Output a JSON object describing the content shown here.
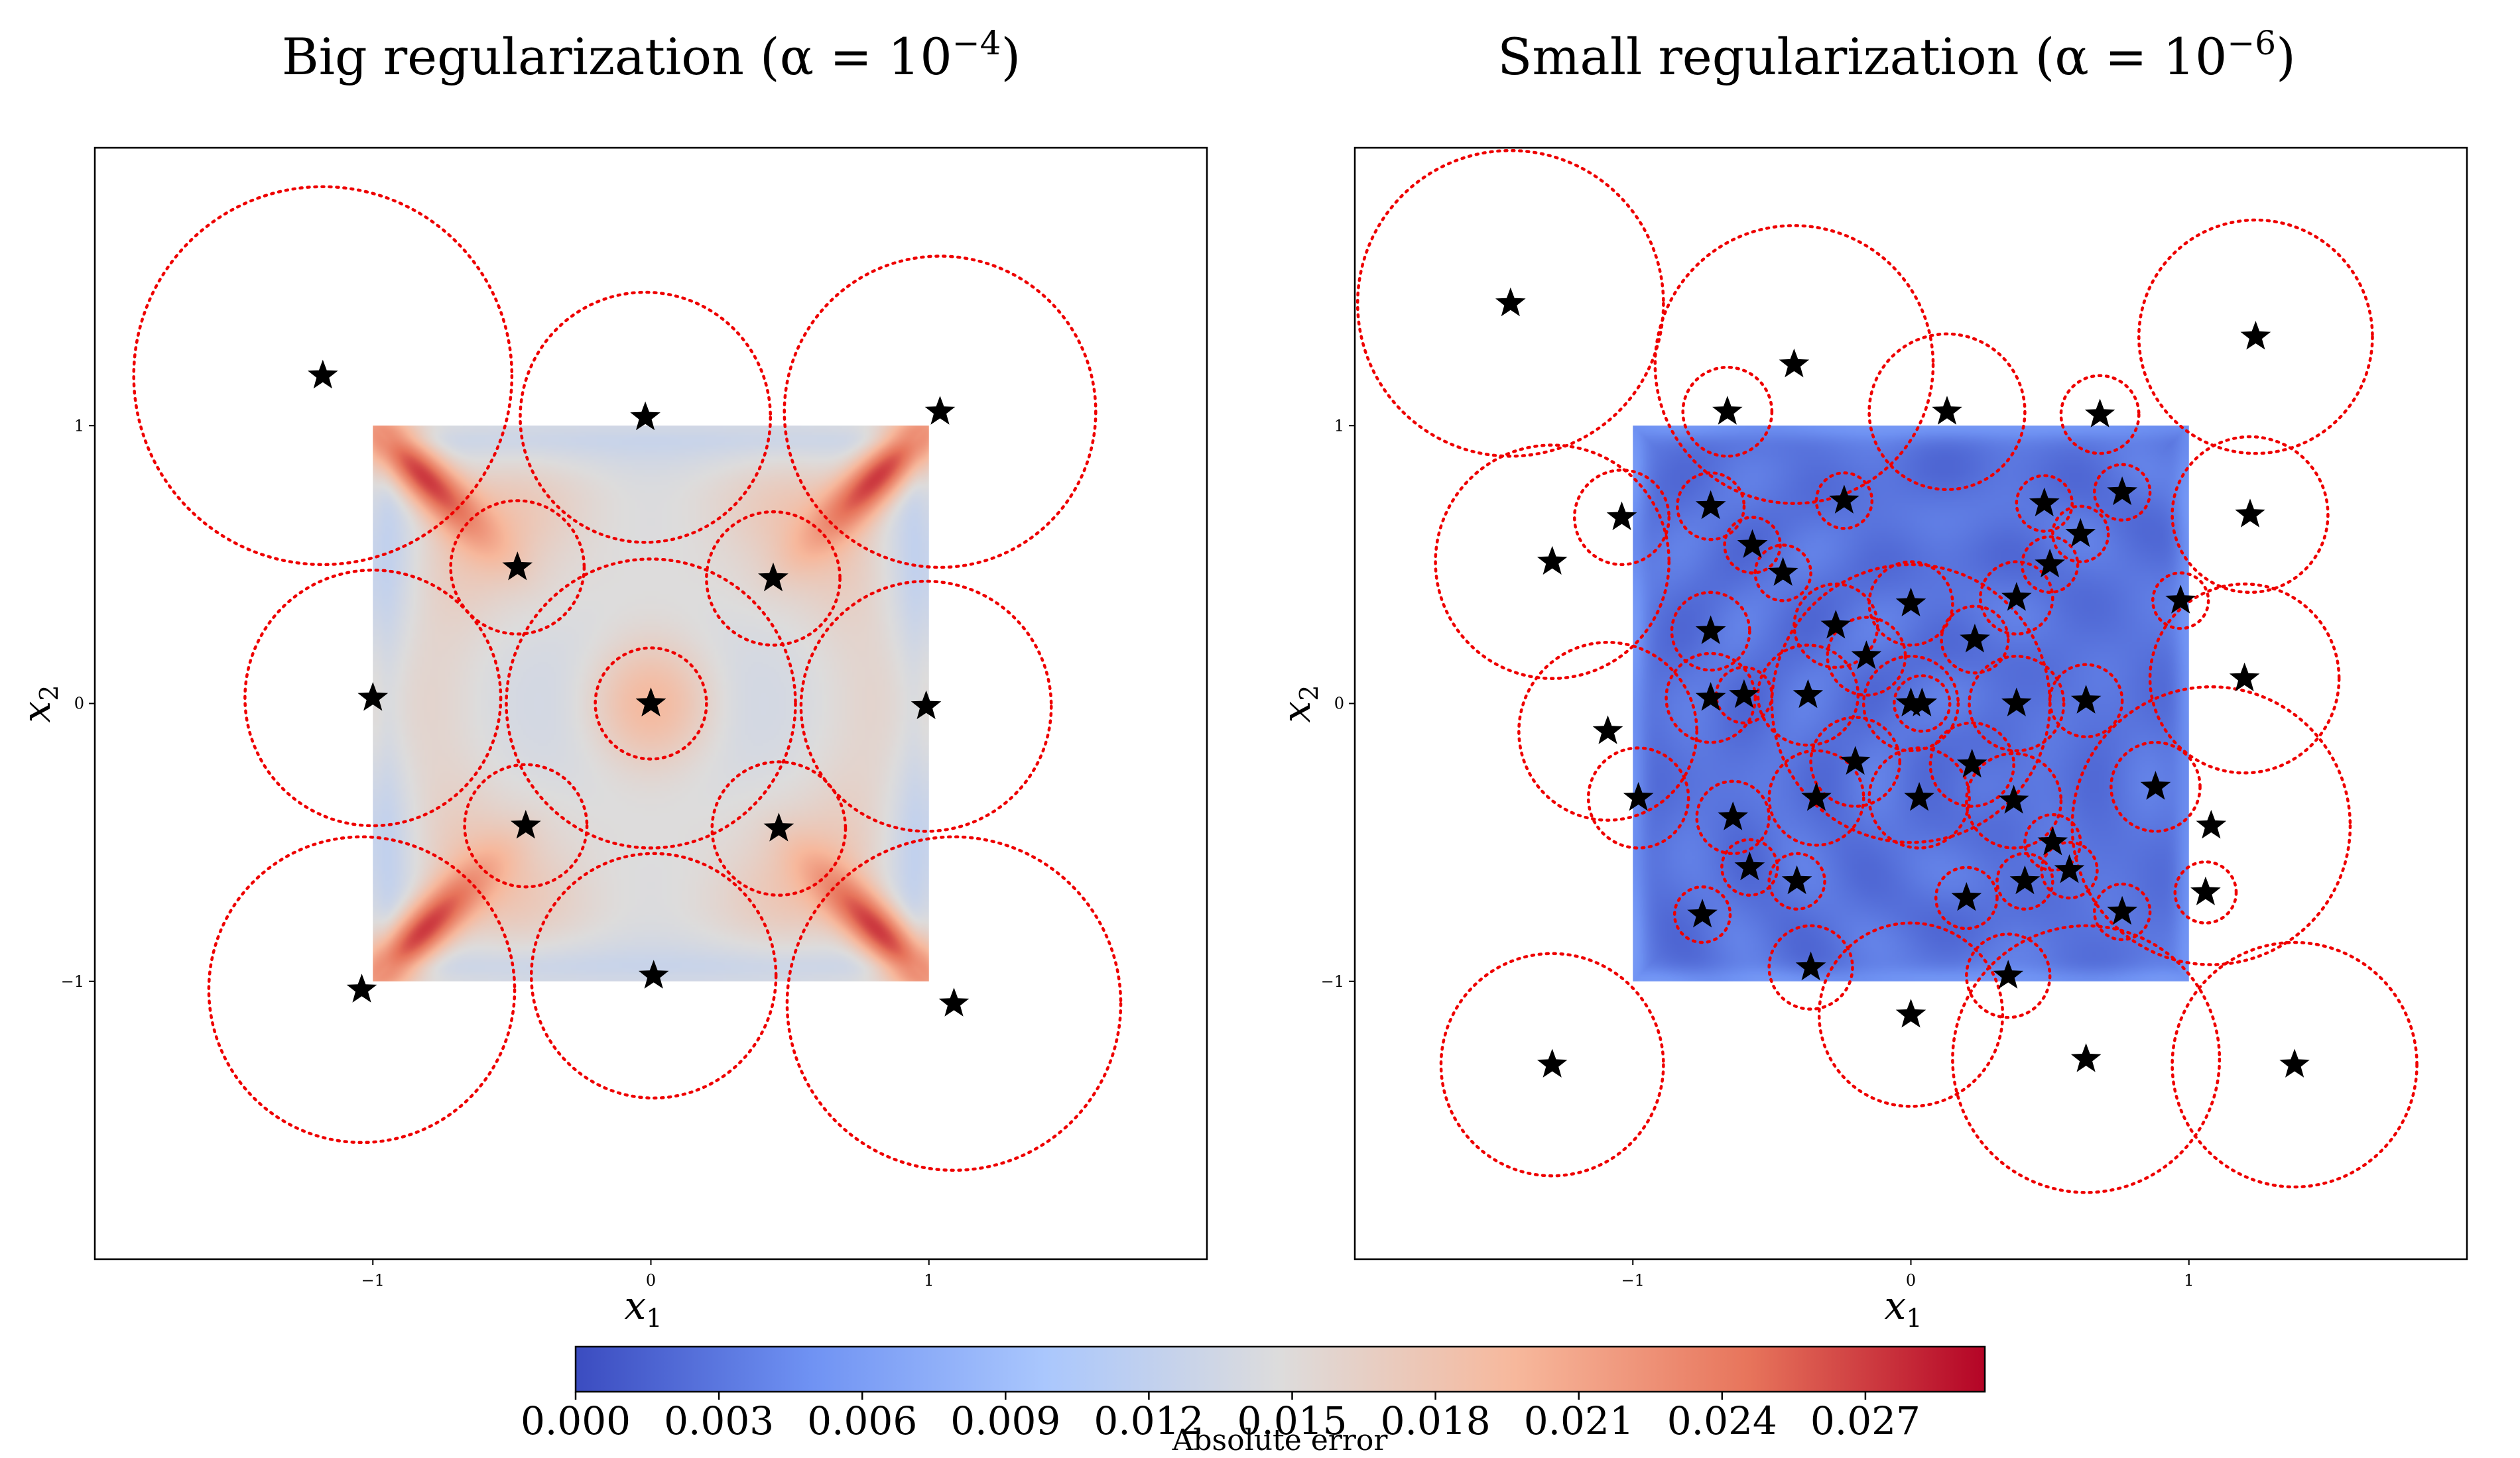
{
  "figure": {
    "colorbar": {
      "label": "Absolute error",
      "ticks": [
        "0.000",
        "0.003",
        "0.006",
        "0.009",
        "0.012",
        "0.015",
        "0.018",
        "0.021",
        "0.024",
        "0.027"
      ],
      "range": [
        0,
        0.0295
      ],
      "colormap": "coolwarm",
      "stops": [
        "#3b4cc0",
        "#6f92f3",
        "#aac7fd",
        "#dddcdc",
        "#f7b89c",
        "#e7745b",
        "#b40426"
      ]
    }
  },
  "chart_data": [
    {
      "type": "scatter",
      "title": "Big regularization (α = 10",
      "title_exponent": "−4",
      "title_close": ")",
      "xlabel": "x",
      "xlabel_sub": "1",
      "ylabel": "x",
      "ylabel_sub": "2",
      "xlim": [
        -2,
        2
      ],
      "ylim": [
        -2,
        2
      ],
      "xticks": [
        -1,
        0,
        1
      ],
      "yticks": [
        -1,
        0,
        1
      ],
      "xtick_labels": [
        "−1",
        "0",
        "1"
      ],
      "ytick_labels": [
        "−1",
        "0",
        "1"
      ],
      "domain": [
        -1,
        1
      ],
      "error_field": "big",
      "marker_color": "#000000",
      "circle_color": "#ee0000",
      "centers": [
        {
          "x": -1.18,
          "y": 1.18,
          "r": 0.68
        },
        {
          "x": -0.02,
          "y": 1.03,
          "r": 0.45
        },
        {
          "x": 1.04,
          "y": 1.05,
          "r": 0.56
        },
        {
          "x": -0.48,
          "y": 0.49,
          "r": 0.24
        },
        {
          "x": 0.44,
          "y": 0.45,
          "r": 0.24
        },
        {
          "x": -1.0,
          "y": 0.02,
          "r": 0.46
        },
        {
          "x": 0.0,
          "y": 0.0,
          "r": 0.2
        },
        {
          "x": 0.0,
          "y": 0.0,
          "r": 0.52
        },
        {
          "x": 0.99,
          "y": -0.01,
          "r": 0.45
        },
        {
          "x": -0.45,
          "y": -0.44,
          "r": 0.22
        },
        {
          "x": 0.46,
          "y": -0.45,
          "r": 0.24
        },
        {
          "x": -1.04,
          "y": -1.03,
          "r": 0.55
        },
        {
          "x": 0.01,
          "y": -0.98,
          "r": 0.44
        },
        {
          "x": 1.09,
          "y": -1.08,
          "r": 0.6
        }
      ]
    },
    {
      "type": "scatter",
      "title": "Small regularization (α = 10",
      "title_exponent": "−6",
      "title_close": ")",
      "xlabel": "x",
      "xlabel_sub": "1",
      "ylabel": "x",
      "ylabel_sub": "2",
      "xlim": [
        -2,
        2
      ],
      "ylim": [
        -2,
        2
      ],
      "xticks": [
        -1,
        0,
        1
      ],
      "yticks": [
        -1,
        0,
        1
      ],
      "xtick_labels": [
        "−1",
        "0",
        "1"
      ],
      "ytick_labels": [
        "−1",
        "0",
        "1"
      ],
      "domain": [
        -1,
        1
      ],
      "error_field": "small",
      "marker_color": "#000000",
      "circle_color": "#ee0000",
      "centers": [
        {
          "x": -1.44,
          "y": 1.44,
          "r": 0.55
        },
        {
          "x": -0.42,
          "y": 1.22,
          "r": 0.5
        },
        {
          "x": 1.24,
          "y": 1.32,
          "r": 0.42
        },
        {
          "x": -0.66,
          "y": 1.05,
          "r": 0.16
        },
        {
          "x": 0.13,
          "y": 1.05,
          "r": 0.28
        },
        {
          "x": 0.68,
          "y": 1.04,
          "r": 0.14
        },
        {
          "x": -1.04,
          "y": 0.67,
          "r": 0.17
        },
        {
          "x": -1.29,
          "y": 0.51,
          "r": 0.42
        },
        {
          "x": 1.22,
          "y": 0.68,
          "r": 0.28
        },
        {
          "x": -0.72,
          "y": 0.71,
          "r": 0.12
        },
        {
          "x": -0.24,
          "y": 0.73,
          "r": 0.1
        },
        {
          "x": 0.48,
          "y": 0.72,
          "r": 0.1
        },
        {
          "x": 0.76,
          "y": 0.76,
          "r": 0.1
        },
        {
          "x": -0.57,
          "y": 0.57,
          "r": 0.1
        },
        {
          "x": 0.61,
          "y": 0.61,
          "r": 0.1
        },
        {
          "x": -0.46,
          "y": 0.47,
          "r": 0.1
        },
        {
          "x": 0.5,
          "y": 0.5,
          "r": 0.1
        },
        {
          "x": 0.0,
          "y": 0.36,
          "r": 0.15
        },
        {
          "x": 0.38,
          "y": 0.38,
          "r": 0.13
        },
        {
          "x": 0.97,
          "y": 0.37,
          "r": 0.1
        },
        {
          "x": -0.72,
          "y": 0.26,
          "r": 0.14
        },
        {
          "x": -0.27,
          "y": 0.28,
          "r": 0.15
        },
        {
          "x": 0.23,
          "y": 0.23,
          "r": 0.12
        },
        {
          "x": -0.16,
          "y": 0.17,
          "r": 0.14
        },
        {
          "x": 1.2,
          "y": 0.09,
          "r": 0.34
        },
        {
          "x": -0.72,
          "y": 0.02,
          "r": 0.16
        },
        {
          "x": -0.6,
          "y": 0.03,
          "r": 0.1
        },
        {
          "x": -0.37,
          "y": 0.03,
          "r": 0.18
        },
        {
          "x": 0.0,
          "y": 0.0,
          "r": 0.17
        },
        {
          "x": 0.04,
          "y": 0.0,
          "r": 0.1
        },
        {
          "x": 0.38,
          "y": 0.0,
          "r": 0.17
        },
        {
          "x": 0.63,
          "y": 0.01,
          "r": 0.13
        },
        {
          "x": 0.0,
          "y": 0.0,
          "r": 0.5
        },
        {
          "x": -1.09,
          "y": -0.1,
          "r": 0.32
        },
        {
          "x": -0.2,
          "y": -0.21,
          "r": 0.16
        },
        {
          "x": 0.22,
          "y": -0.22,
          "r": 0.15
        },
        {
          "x": -0.98,
          "y": -0.34,
          "r": 0.18
        },
        {
          "x": -0.34,
          "y": -0.34,
          "r": 0.17
        },
        {
          "x": 0.03,
          "y": -0.34,
          "r": 0.18
        },
        {
          "x": 0.37,
          "y": -0.35,
          "r": 0.17
        },
        {
          "x": 0.88,
          "y": -0.3,
          "r": 0.16
        },
        {
          "x": -0.64,
          "y": -0.41,
          "r": 0.13
        },
        {
          "x": 1.08,
          "y": -0.44,
          "r": 0.5
        },
        {
          "x": 0.51,
          "y": -0.5,
          "r": 0.1
        },
        {
          "x": -0.58,
          "y": -0.59,
          "r": 0.1
        },
        {
          "x": 0.57,
          "y": -0.6,
          "r": 0.1
        },
        {
          "x": -0.41,
          "y": -0.64,
          "r": 0.1
        },
        {
          "x": 0.41,
          "y": -0.64,
          "r": 0.1
        },
        {
          "x": 0.2,
          "y": -0.7,
          "r": 0.11
        },
        {
          "x": 1.06,
          "y": -0.68,
          "r": 0.11
        },
        {
          "x": -0.75,
          "y": -0.76,
          "r": 0.1
        },
        {
          "x": 0.76,
          "y": -0.75,
          "r": 0.1
        },
        {
          "x": -0.36,
          "y": -0.95,
          "r": 0.15
        },
        {
          "x": 0.35,
          "y": -0.98,
          "r": 0.15
        },
        {
          "x": -1.29,
          "y": -1.3,
          "r": 0.4
        },
        {
          "x": 0.0,
          "y": -1.12,
          "r": 0.33
        },
        {
          "x": 0.63,
          "y": -1.28,
          "r": 0.48
        },
        {
          "x": 1.38,
          "y": -1.3,
          "r": 0.44
        }
      ]
    }
  ]
}
